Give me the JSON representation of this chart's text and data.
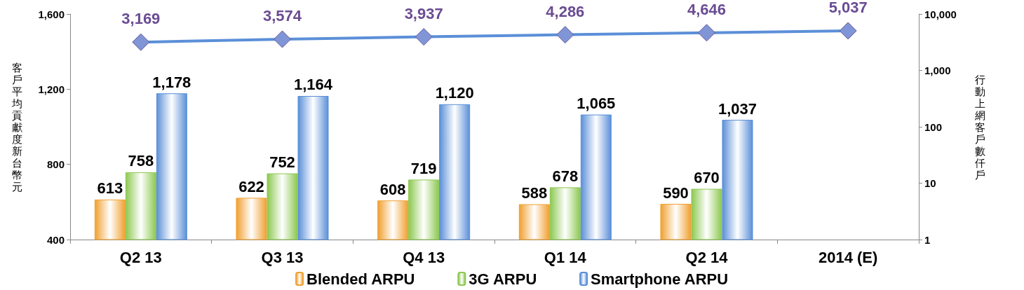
{
  "chart_data": {
    "type": "bar",
    "categories": [
      "Q2 13",
      "Q3 13",
      "Q4 13",
      "Q1 14",
      "Q2 14",
      "2014 (E)"
    ],
    "series": [
      {
        "name": "Blended ARPU",
        "color": "#f0a030",
        "values": [
          613,
          622,
          608,
          588,
          590,
          null
        ],
        "value_labels": [
          "613",
          "622",
          "608",
          "588",
          "590",
          null
        ]
      },
      {
        "name": "3G ARPU",
        "color": "#8cc850",
        "values": [
          758,
          752,
          719,
          678,
          670,
          null
        ],
        "value_labels": [
          "758",
          "752",
          "719",
          "678",
          "670",
          null
        ]
      },
      {
        "name": "Smartphone ARPU",
        "color": "#5b8fd8",
        "values": [
          1178,
          1164,
          1120,
          1065,
          1037,
          null
        ],
        "value_labels": [
          "1,178",
          "1,164",
          "1,120",
          "1,065",
          "1,037",
          null
        ]
      },
      {
        "type": "line",
        "axis": "y2",
        "color": "#5b8fd8",
        "marker": "diamond",
        "values": [
          3169,
          3574,
          3937,
          4286,
          4646,
          5037
        ],
        "value_labels": [
          "3,169",
          "3,574",
          "3,937",
          "4,286",
          "4,646",
          "5,037"
        ]
      }
    ],
    "ylabel": "客戶平均貢獻度新台幣元",
    "y2label": "行動上網客戶數仟戶",
    "ylim": [
      400,
      1600
    ],
    "yticks": [
      {
        "value": 400,
        "label": "400"
      },
      {
        "value": 800,
        "label": "800"
      },
      {
        "value": 1200,
        "label": "1,200"
      },
      {
        "value": 1600,
        "label": "1,600"
      }
    ],
    "y2lim": [
      1,
      10000
    ],
    "y2ticks": [
      {
        "value": 1,
        "label": "1"
      },
      {
        "value": 10,
        "label": "10"
      },
      {
        "value": 100,
        "label": "100"
      },
      {
        "value": 1000,
        "label": "1,000"
      },
      {
        "value": 10000,
        "label": "10,000"
      }
    ],
    "log": "y2",
    "grid": false,
    "legend": "bottom"
  }
}
